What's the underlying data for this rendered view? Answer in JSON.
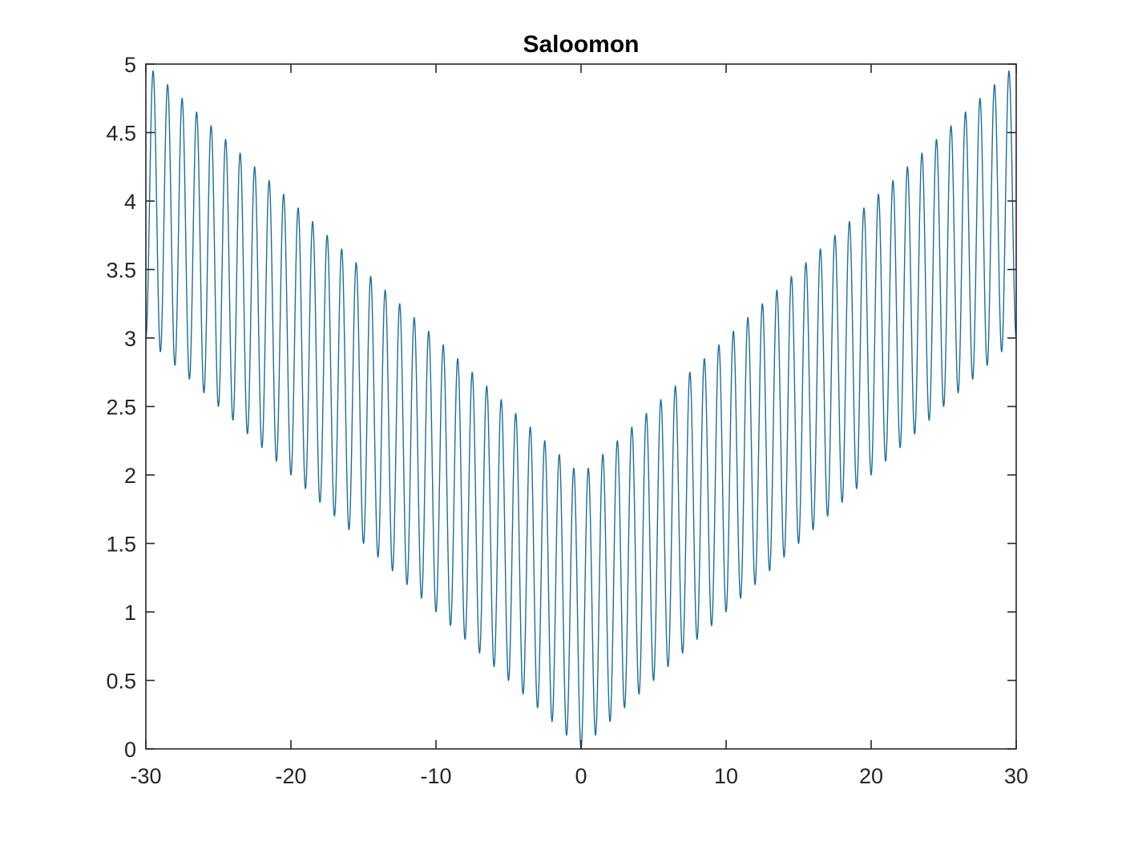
{
  "chart_data": {
    "type": "line",
    "title": "Saloomon",
    "xlabel": "",
    "ylabel": "",
    "xlim": [
      -30,
      30
    ],
    "ylim": [
      0,
      5
    ],
    "x_ticks": [
      -30,
      -20,
      -10,
      0,
      10,
      20,
      30
    ],
    "y_ticks": [
      0,
      0.5,
      1,
      1.5,
      2,
      2.5,
      3,
      3.5,
      4,
      4.5,
      5
    ],
    "x_tick_labels": [
      "-30",
      "-20",
      "-10",
      "0",
      "10",
      "20",
      "30"
    ],
    "y_tick_labels": [
      "0",
      "0.5",
      "1",
      "1.5",
      "2",
      "2.5",
      "3",
      "3.5",
      "4",
      "4.5",
      "5"
    ],
    "grid": false,
    "series": [
      {
        "color": "#1f6f99",
        "function": "1 - cos(2*pi*|x|) + 0.1*|x|",
        "x_range": [
          -30,
          30
        ],
        "sample_step": 0.02
      }
    ]
  }
}
